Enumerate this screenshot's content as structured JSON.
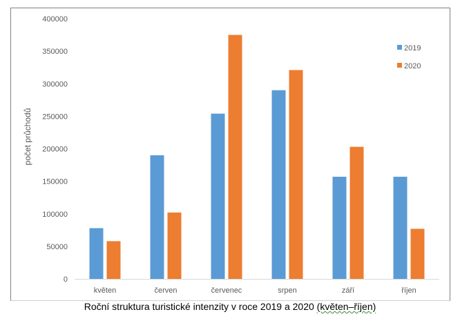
{
  "chart_data": {
    "type": "bar",
    "title": "",
    "caption_main": "Roční struktura turistické intenzity v roce 2019 a 2020 ",
    "caption_paren": "(květen–říjen)",
    "xlabel": "",
    "ylabel": "počet průchodů",
    "ylim": [
      0,
      400000
    ],
    "yticks": [
      0,
      50000,
      100000,
      150000,
      200000,
      250000,
      300000,
      350000,
      400000
    ],
    "grid": false,
    "legend_position": "top-right",
    "categories": [
      "květen",
      "červen",
      "červenec",
      "srpen",
      "září",
      "říjen"
    ],
    "series": [
      {
        "name": "2019",
        "color": "#5b9bd5",
        "values": [
          78000,
          190000,
          254000,
          290000,
          157000,
          157000
        ]
      },
      {
        "name": "2020",
        "color": "#ed7d31",
        "values": [
          58000,
          102000,
          375000,
          321000,
          203000,
          77000
        ]
      }
    ]
  }
}
